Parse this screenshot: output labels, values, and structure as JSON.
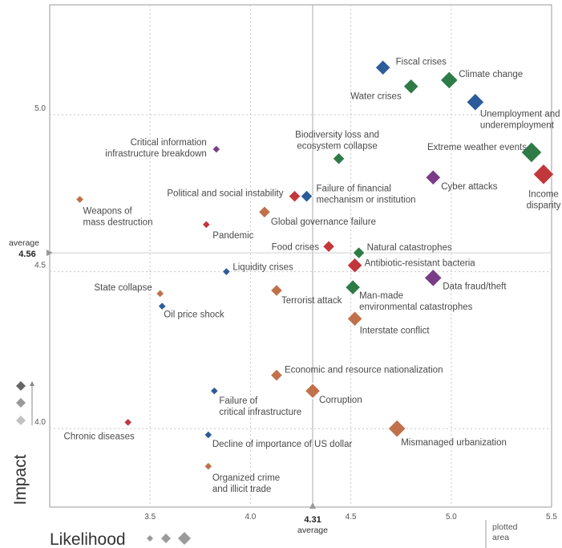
{
  "chart_data": {
    "type": "scatter",
    "title": "",
    "xlabel": "Likelihood",
    "ylabel": "Impact",
    "xlim": [
      3.0,
      5.5
    ],
    "ylim": [
      3.75,
      5.35
    ],
    "xticks": [
      "3.5",
      "4.0",
      "4.5",
      "5.0",
      "5.5"
    ],
    "yticks": [
      "4.0",
      "4.5",
      "5.0"
    ],
    "grid": true,
    "average": {
      "x": 4.31,
      "x_label": "4.31",
      "y": 4.56,
      "y_label": "4.56",
      "caption": "average"
    },
    "footnote": "plotted area",
    "colors": {
      "economic": "#2c5c9a",
      "environmental": "#2e7b48",
      "geopolitical": "#c0714a",
      "societal": "#c2373c",
      "technological": "#7a3c87"
    },
    "points": [
      {
        "name": "Fiscal crises",
        "x": 4.66,
        "y": 5.15,
        "category": "economic",
        "size": 3
      },
      {
        "name": "Climate change",
        "x": 4.99,
        "y": 5.11,
        "category": "environmental",
        "size": 4
      },
      {
        "name": "Water crises",
        "x": 4.8,
        "y": 5.09,
        "category": "environmental",
        "size": 3
      },
      {
        "name": "Unemployment and underemployment",
        "x": 5.12,
        "y": 5.04,
        "category": "economic",
        "size": 4
      },
      {
        "name": "Critical information infrastructure breakdown",
        "x": 3.83,
        "y": 4.89,
        "category": "technological",
        "size": 1
      },
      {
        "name": "Biodiversity loss and ecosystem collapse",
        "x": 4.44,
        "y": 4.86,
        "category": "environmental",
        "size": 2
      },
      {
        "name": "Extreme weather events",
        "x": 5.4,
        "y": 4.88,
        "category": "environmental",
        "size": 5
      },
      {
        "name": "Income disparity",
        "x": 5.46,
        "y": 4.81,
        "category": "societal",
        "size": 5
      },
      {
        "name": "Cyber attacks",
        "x": 4.91,
        "y": 4.8,
        "category": "technological",
        "size": 3
      },
      {
        "name": "Political and social instability",
        "x": 4.22,
        "y": 4.74,
        "category": "societal",
        "size": 2
      },
      {
        "name": "Failure of financial mechanism or institution",
        "x": 4.28,
        "y": 4.74,
        "category": "economic",
        "size": 2
      },
      {
        "name": "Weapons of mass destruction",
        "x": 3.15,
        "y": 4.73,
        "category": "geopolitical",
        "size": 1
      },
      {
        "name": "Global governance failure",
        "x": 4.07,
        "y": 4.69,
        "category": "geopolitical",
        "size": 2
      },
      {
        "name": "Pandemic",
        "x": 3.78,
        "y": 4.65,
        "category": "societal",
        "size": 1
      },
      {
        "name": "Food crises",
        "x": 4.39,
        "y": 4.58,
        "category": "societal",
        "size": 2
      },
      {
        "name": "Natural catastrophes",
        "x": 4.54,
        "y": 4.56,
        "category": "environmental",
        "size": 2
      },
      {
        "name": "Antibiotic-resistant bacteria",
        "x": 4.52,
        "y": 4.52,
        "category": "societal",
        "size": 3
      },
      {
        "name": "Liquidity crises",
        "x": 3.88,
        "y": 4.5,
        "category": "economic",
        "size": 1
      },
      {
        "name": "Data fraud/theft",
        "x": 4.91,
        "y": 4.48,
        "category": "technological",
        "size": 4
      },
      {
        "name": "Man-made environmental catastrophes",
        "x": 4.51,
        "y": 4.45,
        "category": "environmental",
        "size": 3
      },
      {
        "name": "State collapse",
        "x": 3.55,
        "y": 4.43,
        "category": "geopolitical",
        "size": 1
      },
      {
        "name": "Terrorist attack",
        "x": 4.13,
        "y": 4.44,
        "category": "geopolitical",
        "size": 2
      },
      {
        "name": "Oil price shock",
        "x": 3.56,
        "y": 4.39,
        "category": "economic",
        "size": 1
      },
      {
        "name": "Interstate conflict",
        "x": 4.52,
        "y": 4.35,
        "category": "geopolitical",
        "size": 3
      },
      {
        "name": "Economic and resource nationalization",
        "x": 4.13,
        "y": 4.17,
        "category": "geopolitical",
        "size": 2
      },
      {
        "name": "Failure of critical infrastructure",
        "x": 3.82,
        "y": 4.12,
        "category": "economic",
        "size": 1
      },
      {
        "name": "Corruption",
        "x": 4.31,
        "y": 4.12,
        "category": "geopolitical",
        "size": 3
      },
      {
        "name": "Chronic diseases",
        "x": 3.39,
        "y": 4.02,
        "category": "societal",
        "size": 1
      },
      {
        "name": "Mismanaged urbanization",
        "x": 4.73,
        "y": 4.0,
        "category": "geopolitical",
        "size": 4
      },
      {
        "name": "Decline of importance of US dollar",
        "x": 3.79,
        "y": 3.98,
        "category": "economic",
        "size": 1
      },
      {
        "name": "Organized crime and illicit trade",
        "x": 3.79,
        "y": 3.88,
        "category": "geopolitical",
        "size": 1
      }
    ]
  }
}
